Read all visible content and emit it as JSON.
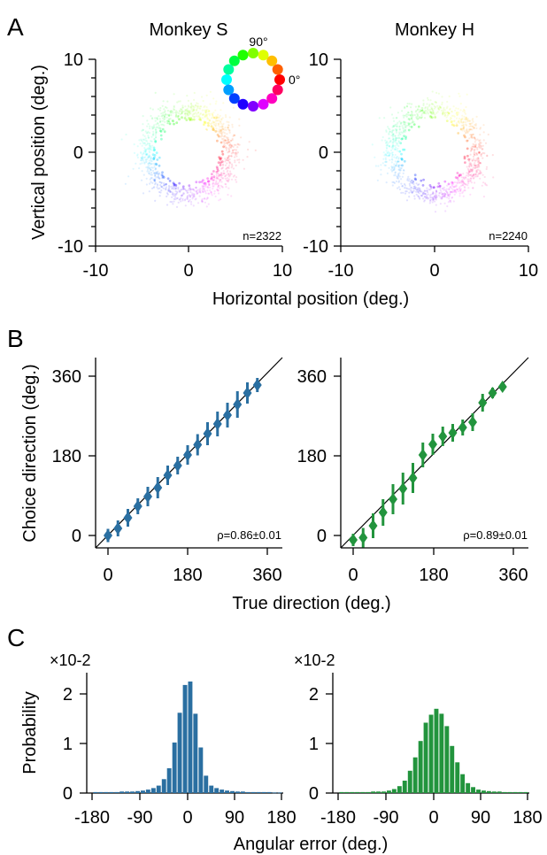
{
  "figure": {
    "panel_labels": [
      "A",
      "B",
      "C"
    ],
    "colors": {
      "monkey_s": "#2a6fa1",
      "monkey_h": "#22943d",
      "axis": "#000000"
    }
  },
  "chart_data": [
    {
      "id": "A1",
      "type": "scatter",
      "panel": "A",
      "title": "Monkey S",
      "xlabel": "Horizontal position (deg.)",
      "ylabel": "Vertical position (deg.)",
      "xlim": [
        -10,
        10
      ],
      "ylim": [
        -10,
        10
      ],
      "xticks": [
        "-10",
        "0",
        "10"
      ],
      "yticks": [
        "-10",
        "0",
        "10"
      ],
      "annotation": "n=2322",
      "distribution": {
        "shape": "ring",
        "center": [
          0,
          0
        ],
        "inner_radius": 3,
        "outer_radius": 6,
        "color": "hue = direction"
      },
      "legend": {
        "type": "color-wheel",
        "labels": [
          "90°",
          "0°"
        ]
      }
    },
    {
      "id": "A2",
      "type": "scatter",
      "panel": "A",
      "title": "Monkey H",
      "xlabel": "",
      "ylabel": "",
      "xlim": [
        -10,
        10
      ],
      "ylim": [
        -10,
        10
      ],
      "xticks": [
        "-10",
        "0",
        "10"
      ],
      "yticks": [
        "-10",
        "0",
        "10"
      ],
      "annotation": "n=2240",
      "distribution": {
        "shape": "ring",
        "center": [
          0,
          0
        ],
        "inner_radius": 3,
        "outer_radius": 6,
        "color": "hue = direction"
      }
    },
    {
      "id": "B1",
      "type": "scatter",
      "panel": "B",
      "xlabel": "True direction (deg.)",
      "ylabel": "Choice direction (deg.)",
      "xlim": [
        -20,
        380
      ],
      "ylim": [
        -20,
        380
      ],
      "xticks": [
        "0",
        "180",
        "360"
      ],
      "yticks": [
        "0",
        "180",
        "360"
      ],
      "annotation": "ρ=0.86±0.01",
      "series": [
        {
          "color": "#2a6fa1",
          "x": [
            0,
            22.5,
            45,
            67.5,
            90,
            112.5,
            135,
            157.5,
            180,
            202.5,
            225,
            247.5,
            270,
            292.5,
            315,
            337.5
          ],
          "y": [
            0,
            16,
            40,
            66,
            88,
            108,
            136,
            158,
            182,
            205,
            230,
            252,
            272,
            296,
            322,
            340
          ],
          "err": [
            15,
            18,
            20,
            18,
            22,
            24,
            22,
            20,
            22,
            24,
            26,
            28,
            28,
            30,
            24,
            16
          ]
        }
      ],
      "reference_line": "y = x"
    },
    {
      "id": "B2",
      "type": "scatter",
      "panel": "B",
      "xlabel": "",
      "ylabel": "",
      "xlim": [
        -20,
        380
      ],
      "ylim": [
        -20,
        380
      ],
      "xticks": [
        "0",
        "180",
        "360"
      ],
      "yticks": [
        "0",
        "180",
        "360"
      ],
      "annotation": "ρ=0.89±0.01",
      "series": [
        {
          "color": "#22943d",
          "x": [
            0,
            22.5,
            45,
            67.5,
            90,
            112.5,
            135,
            157.5,
            180,
            202.5,
            225,
            247.5,
            270,
            292.5,
            315,
            337.5
          ],
          "y": [
            -10,
            -5,
            22,
            52,
            82,
            106,
            130,
            182,
            206,
            224,
            232,
            244,
            256,
            300,
            322,
            336
          ],
          "err": [
            14,
            22,
            28,
            30,
            34,
            36,
            34,
            28,
            24,
            22,
            20,
            18,
            20,
            20,
            12,
            8
          ]
        }
      ],
      "reference_line": "y = x"
    },
    {
      "id": "C1",
      "type": "bar",
      "panel": "C",
      "xlabel": "Angular error (deg.)",
      "ylabel": "Probability",
      "y_multiplier": "×10-2",
      "xlim": [
        -180,
        180
      ],
      "ylim": [
        0,
        2.3
      ],
      "xticks": [
        "-180",
        "-90",
        "0",
        "90",
        "180"
      ],
      "yticks": [
        "0",
        "1",
        "2"
      ],
      "bin_width": 10,
      "bin_centers": [
        -175,
        -165,
        -155,
        -145,
        -135,
        -125,
        -115,
        -105,
        -95,
        -85,
        -75,
        -65,
        -55,
        -45,
        -35,
        -25,
        -15,
        -5,
        5,
        15,
        25,
        35,
        45,
        55,
        65,
        75,
        85,
        95,
        105,
        115,
        125,
        135,
        145,
        155,
        165,
        175
      ],
      "values": [
        0.02,
        0.02,
        0.02,
        0.02,
        0.02,
        0.03,
        0.03,
        0.03,
        0.04,
        0.05,
        0.07,
        0.1,
        0.15,
        0.28,
        0.5,
        1.02,
        1.62,
        2.18,
        2.25,
        1.6,
        0.92,
        0.35,
        0.15,
        0.1,
        0.07,
        0.05,
        0.04,
        0.03,
        0.03,
        0.02,
        0.02,
        0.02,
        0.02,
        0.02,
        0.01,
        0.01
      ],
      "color": "#2a6fa1"
    },
    {
      "id": "C2",
      "type": "bar",
      "panel": "C",
      "xlabel": "",
      "ylabel": "",
      "y_multiplier": "×10-2",
      "xlim": [
        -180,
        180
      ],
      "ylim": [
        0,
        2.3
      ],
      "xticks": [
        "-180",
        "-90",
        "0",
        "90",
        "180"
      ],
      "yticks": [
        "0",
        "1",
        "2"
      ],
      "bin_width": 10,
      "bin_centers": [
        -175,
        -165,
        -155,
        -145,
        -135,
        -125,
        -115,
        -105,
        -95,
        -85,
        -75,
        -65,
        -55,
        -45,
        -35,
        -25,
        -15,
        -5,
        5,
        15,
        25,
        35,
        45,
        55,
        65,
        75,
        85,
        95,
        105,
        115,
        125,
        135,
        145,
        155,
        165,
        175
      ],
      "values": [
        0.02,
        0.02,
        0.02,
        0.02,
        0.02,
        0.02,
        0.03,
        0.03,
        0.03,
        0.05,
        0.08,
        0.14,
        0.25,
        0.45,
        0.72,
        1.05,
        1.42,
        1.58,
        1.7,
        1.6,
        1.35,
        0.95,
        0.62,
        0.38,
        0.2,
        0.12,
        0.07,
        0.05,
        0.04,
        0.03,
        0.03,
        0.02,
        0.02,
        0.02,
        0.02,
        0.02
      ],
      "color": "#22943d"
    }
  ]
}
